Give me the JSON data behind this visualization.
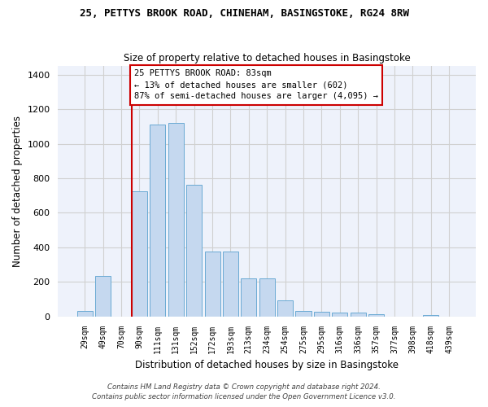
{
  "title": "25, PETTYS BROOK ROAD, CHINEHAM, BASINGSTOKE, RG24 8RW",
  "subtitle": "Size of property relative to detached houses in Basingstoke",
  "xlabel": "Distribution of detached houses by size in Basingstoke",
  "ylabel": "Number of detached properties",
  "bar_color": "#c5d8ef",
  "bar_edge_color": "#6aaad4",
  "background_color": "#eef2fb",
  "grid_color": "#d0d0d0",
  "categories": [
    "29sqm",
    "49sqm",
    "70sqm",
    "90sqm",
    "111sqm",
    "131sqm",
    "152sqm",
    "172sqm",
    "193sqm",
    "213sqm",
    "234sqm",
    "254sqm",
    "275sqm",
    "295sqm",
    "316sqm",
    "336sqm",
    "357sqm",
    "377sqm",
    "398sqm",
    "418sqm",
    "439sqm"
  ],
  "values": [
    30,
    235,
    0,
    725,
    1110,
    1120,
    760,
    375,
    375,
    220,
    220,
    95,
    30,
    25,
    20,
    20,
    15,
    0,
    0,
    10,
    0
  ],
  "ylim": [
    0,
    1450
  ],
  "yticks": [
    0,
    200,
    400,
    600,
    800,
    1000,
    1200,
    1400
  ],
  "property_line_x": 3.0,
  "annotation_text": "25 PETTYS BROOK ROAD: 83sqm\n← 13% of detached houses are smaller (602)\n87% of semi-detached houses are larger (4,095) →",
  "footer_line1": "Contains HM Land Registry data © Crown copyright and database right 2024.",
  "footer_line2": "Contains public sector information licensed under the Open Government Licence v3.0."
}
